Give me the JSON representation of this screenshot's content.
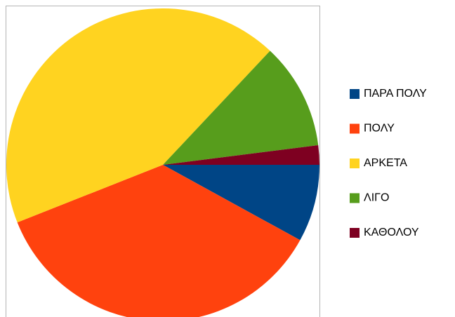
{
  "chart_data": {
    "type": "pie",
    "categories": [
      "ΠΑΡΑ ΠΟΛΥ",
      "ΠΟΛΥ",
      "ΑΡΚΕΤΑ",
      "ΛΙΓΟ",
      "ΚΑΘΟΛΟΥ"
    ],
    "values": [
      8,
      36,
      43,
      11,
      2
    ],
    "colors": [
      "#004586",
      "#ff420e",
      "#ffd320",
      "#579d1c",
      "#7e0021"
    ],
    "legend": "right"
  }
}
